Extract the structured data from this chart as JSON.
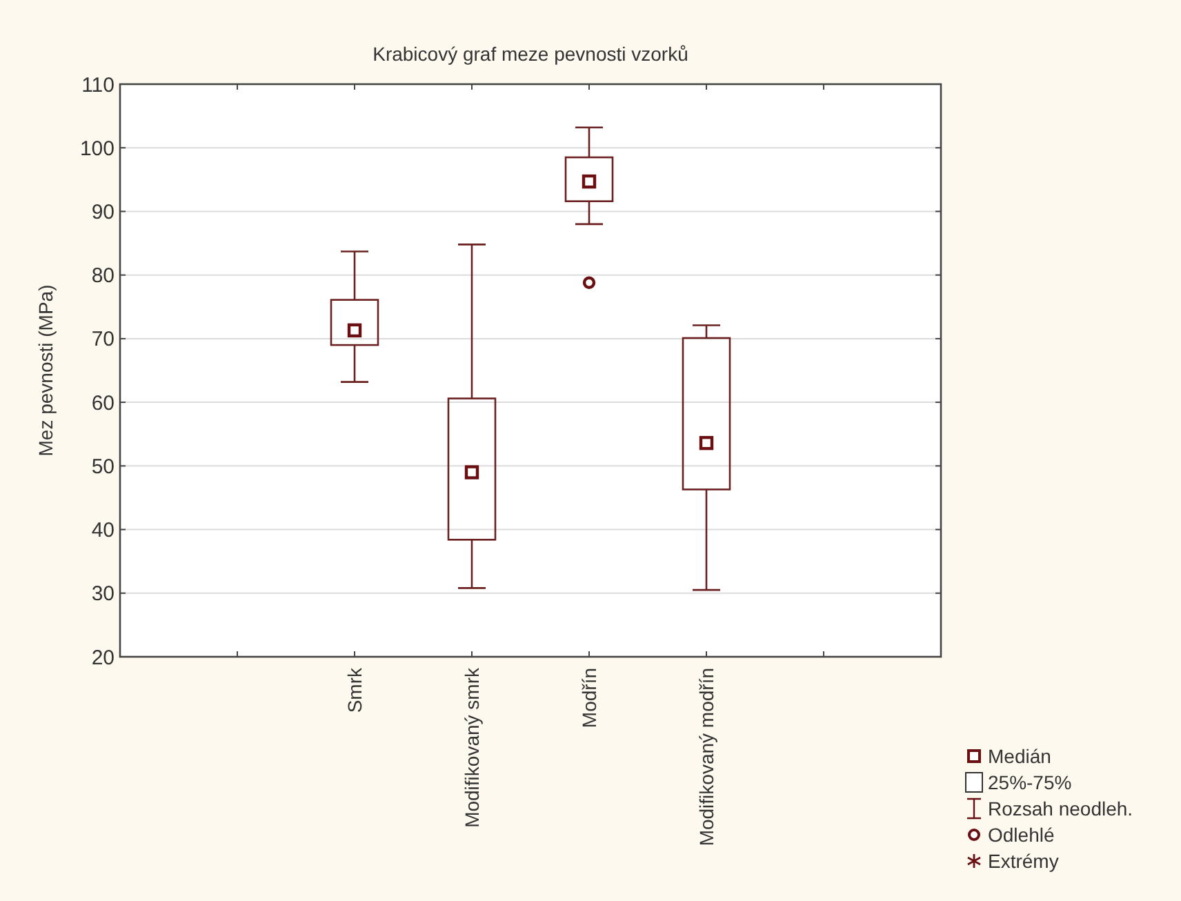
{
  "chart_data": {
    "type": "box",
    "title": "Krabicový graf meze pevnosti vzorků",
    "ylabel": "Mez pevnosti (MPa)",
    "categories": [
      null,
      "Smrk",
      "Modifikovaný smrk",
      "Modřín",
      "Modifikovaný modřín",
      null
    ],
    "series": [
      {
        "color": "#6b1f1f",
        "boxes": [
          null,
          {
            "low": 63.2,
            "q1": 69.0,
            "median": 71.3,
            "q3": 76.1,
            "high": 83.7
          },
          {
            "low": 30.8,
            "q1": 38.4,
            "median": 49.0,
            "q3": 60.6,
            "high": 84.8
          },
          {
            "low": 88.0,
            "q1": 91.6,
            "median": 94.7,
            "q3": 98.5,
            "high": 103.2,
            "outliers": [
              78.8
            ]
          },
          {
            "low": 30.5,
            "q1": 46.3,
            "median": 53.6,
            "q3": 70.1,
            "high": 72.1
          },
          null
        ]
      }
    ],
    "ylim": [
      20,
      110
    ],
    "yticks": [
      20,
      30,
      40,
      50,
      60,
      70,
      80,
      90,
      100,
      110
    ],
    "grid": "y",
    "annotations": [
      "Medián",
      "25%-75%",
      "Rozsah neodleh.",
      "Odlehlé",
      "Extrémy"
    ]
  }
}
